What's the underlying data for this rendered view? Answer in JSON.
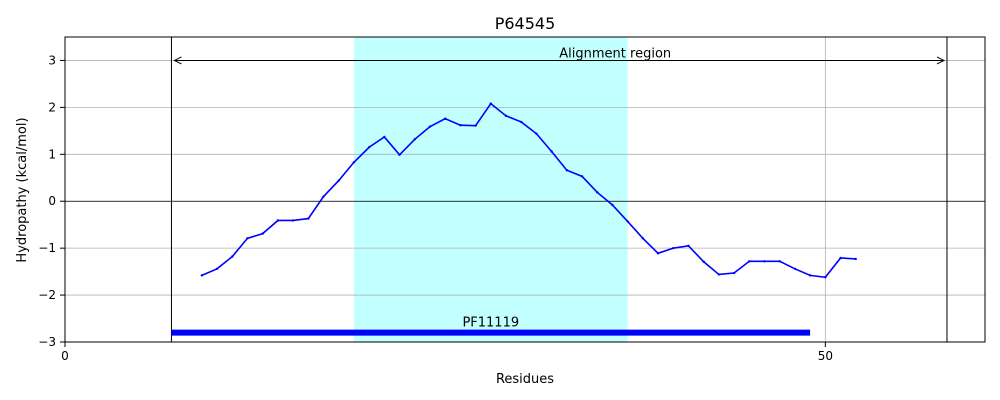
{
  "chart_data": {
    "type": "line",
    "title": "P64545",
    "xlabel": "Residues",
    "ylabel": "Hydropathy (kcal/mol)",
    "xlim": [
      0,
      60.5
    ],
    "ylim": [
      -3,
      3.5
    ],
    "xticks": [
      0,
      50
    ],
    "yticks": [
      -3,
      -2,
      -1,
      0,
      1,
      2,
      3
    ],
    "ytick_labels": [
      "−3",
      "−2",
      "−1",
      "0",
      "1",
      "2",
      "3"
    ],
    "grid": true,
    "colors": {
      "line": "#0000ff",
      "highlight": "#c2ffff",
      "domain_bar": "#0000ff",
      "grid": "#b0b0b0"
    },
    "series": [
      {
        "x": [
          9,
          10,
          11,
          12,
          13,
          14,
          15,
          16,
          17,
          18,
          19,
          20,
          21,
          22,
          23,
          24,
          25,
          26,
          27,
          28,
          29,
          30,
          31,
          32,
          33,
          34,
          35,
          36,
          37,
          38,
          39,
          40,
          41,
          42,
          43,
          44,
          45,
          46,
          47,
          48,
          49,
          50,
          51,
          52
        ],
        "values": [
          -1.58,
          -1.44,
          -1.18,
          -0.79,
          -0.69,
          -0.41,
          -0.41,
          -0.37,
          0.1,
          0.44,
          0.83,
          1.15,
          1.37,
          0.99,
          1.32,
          1.59,
          1.76,
          1.62,
          1.61,
          2.08,
          1.82,
          1.69,
          1.44,
          1.06,
          0.66,
          0.53,
          0.19,
          -0.08,
          -0.43,
          -0.79,
          -1.11,
          -1.0,
          -0.95,
          -1.29,
          -1.56,
          -1.53,
          -1.28,
          -1.28,
          -1.28,
          -1.44,
          -1.58,
          -1.62,
          -1.21,
          -1.23
        ]
      }
    ],
    "highlight_region": {
      "x_start": 19,
      "x_end": 37
    },
    "alignment_region": {
      "x_start": 7,
      "x_end": 58,
      "y": 3,
      "label": "Alignment region"
    },
    "domain": {
      "label": "PF11119",
      "x_start": 7,
      "x_end": 49,
      "y": -2.8
    }
  }
}
